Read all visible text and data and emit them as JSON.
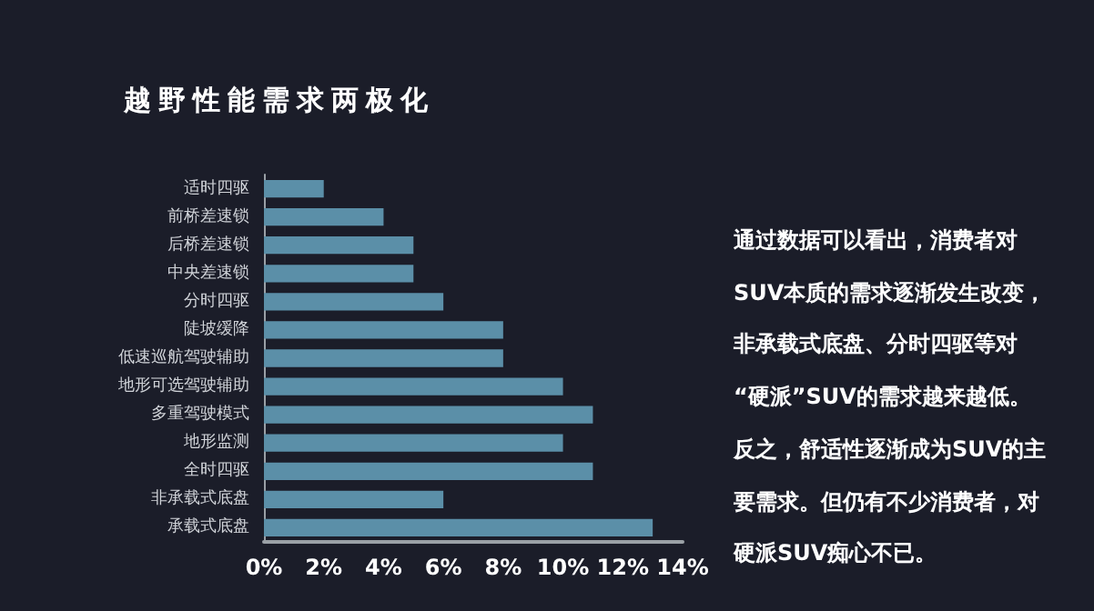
{
  "chart_data": {
    "type": "bar",
    "orientation": "horizontal",
    "title": "越野性能需求两极化",
    "categories": [
      "适时四驱",
      "前桥差速锁",
      "后桥差速锁",
      "中央差速锁",
      "分时四驱",
      "陡坡缓降",
      "低速巡航驾驶辅助",
      "地形可选驾驶辅助",
      "多重驾驶模式",
      "地形监测",
      "全时四驱",
      "非承载式底盘",
      "承载式底盘"
    ],
    "values": [
      2,
      4,
      5,
      5,
      6,
      8,
      8,
      10,
      11,
      10,
      11,
      6,
      13
    ],
    "color": "#5b8fa8",
    "xlim": [
      0,
      14
    ],
    "xticks": [
      {
        "value": 0,
        "label": "0%"
      },
      {
        "value": 2,
        "label": "2%"
      },
      {
        "value": 4,
        "label": "4%"
      },
      {
        "value": 6,
        "label": "6%"
      },
      {
        "value": 8,
        "label": "8%"
      },
      {
        "value": 10,
        "label": "10%"
      },
      {
        "value": 12,
        "label": "12%"
      },
      {
        "value": 14,
        "label": "14%"
      }
    ],
    "grid": false,
    "annotations": [
      "通过数据可以看出，消费者对",
      "SUV本质的需求逐渐发生改变，",
      "非承载式底盘、分时四驱等对",
      "“硬派”SUV的需求越来越低。",
      "反之，舒适性逐渐成为SUV的主",
      "要需求。但仍有不少消费者，对",
      "硬派SUV痴心不已。"
    ]
  }
}
